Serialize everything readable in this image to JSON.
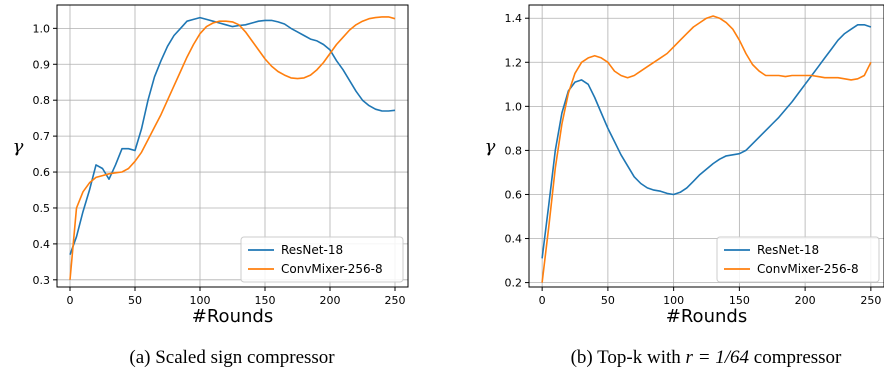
{
  "chart_data": [
    {
      "type": "line",
      "caption": "(a)  Scaled sign compressor",
      "xlabel": "#Rounds",
      "ylabel": "γ",
      "xlim": [
        -10,
        260
      ],
      "ylim": [
        0.28,
        1.065
      ],
      "xticks": [
        0,
        50,
        100,
        150,
        200,
        250
      ],
      "yticks": [
        0.3,
        0.4,
        0.5,
        0.6,
        0.7,
        0.8,
        0.9,
        1.0
      ],
      "ytick_labels": [
        "0.3",
        "0.4",
        "0.5",
        "0.6",
        "0.7",
        "0.8",
        "0.9",
        "1.0"
      ],
      "grid": true,
      "legend_position": "bottom-right",
      "series": [
        {
          "name": "ResNet-18",
          "color": "#1f77b4",
          "x": [
            0,
            5,
            10,
            15,
            20,
            25,
            30,
            35,
            40,
            45,
            50,
            55,
            60,
            65,
            70,
            75,
            80,
            85,
            90,
            95,
            100,
            105,
            110,
            115,
            120,
            125,
            130,
            135,
            140,
            145,
            150,
            155,
            160,
            165,
            170,
            175,
            180,
            185,
            190,
            195,
            200,
            205,
            210,
            215,
            220,
            225,
            230,
            235,
            240,
            245,
            250
          ],
          "y": [
            0.37,
            0.42,
            0.49,
            0.55,
            0.62,
            0.61,
            0.58,
            0.62,
            0.665,
            0.665,
            0.66,
            0.72,
            0.8,
            0.865,
            0.91,
            0.95,
            0.98,
            1.0,
            1.02,
            1.025,
            1.03,
            1.025,
            1.02,
            1.015,
            1.01,
            1.005,
            1.008,
            1.01,
            1.015,
            1.02,
            1.022,
            1.022,
            1.018,
            1.012,
            1.0,
            0.99,
            0.98,
            0.97,
            0.965,
            0.955,
            0.94,
            0.91,
            0.885,
            0.855,
            0.825,
            0.8,
            0.785,
            0.775,
            0.77,
            0.77,
            0.772
          ]
        },
        {
          "name": "ConvMixer-256-8",
          "color": "#ff7f0e",
          "x": [
            0,
            5,
            10,
            15,
            20,
            25,
            30,
            35,
            40,
            45,
            50,
            55,
            60,
            65,
            70,
            75,
            80,
            85,
            90,
            95,
            100,
            105,
            110,
            115,
            120,
            125,
            130,
            135,
            140,
            145,
            150,
            155,
            160,
            165,
            170,
            175,
            180,
            185,
            190,
            195,
            200,
            205,
            210,
            215,
            220,
            225,
            230,
            235,
            240,
            245,
            250
          ],
          "y": [
            0.3,
            0.5,
            0.545,
            0.57,
            0.585,
            0.59,
            0.595,
            0.598,
            0.6,
            0.61,
            0.63,
            0.655,
            0.69,
            0.725,
            0.76,
            0.8,
            0.84,
            0.88,
            0.92,
            0.955,
            0.985,
            1.005,
            1.015,
            1.02,
            1.02,
            1.018,
            1.01,
            0.99,
            0.965,
            0.94,
            0.915,
            0.895,
            0.88,
            0.87,
            0.862,
            0.86,
            0.862,
            0.87,
            0.885,
            0.905,
            0.93,
            0.955,
            0.975,
            0.995,
            1.01,
            1.02,
            1.027,
            1.03,
            1.032,
            1.032,
            1.027
          ]
        }
      ]
    },
    {
      "type": "line",
      "caption_prefix": "(b)  Top-k with",
      "caption_math": "r = 1/64",
      "caption_suffix": "compressor",
      "xlabel": "#Rounds",
      "ylabel": "γ",
      "xlim": [
        -10,
        260
      ],
      "ylim": [
        0.18,
        1.46
      ],
      "xticks": [
        0,
        50,
        100,
        150,
        200,
        250
      ],
      "yticks": [
        0.2,
        0.4,
        0.6,
        0.8,
        1.0,
        1.2,
        1.4
      ],
      "ytick_labels": [
        "0.2",
        "0.4",
        "0.6",
        "0.8",
        "1.0",
        "1.2",
        "1.4"
      ],
      "grid": true,
      "legend_position": "bottom-right",
      "series": [
        {
          "name": "ResNet-18",
          "color": "#1f77b4",
          "x": [
            0,
            5,
            10,
            15,
            20,
            25,
            30,
            35,
            40,
            45,
            50,
            55,
            60,
            65,
            70,
            75,
            80,
            85,
            90,
            95,
            100,
            105,
            110,
            115,
            120,
            125,
            130,
            135,
            140,
            145,
            150,
            155,
            160,
            165,
            170,
            175,
            180,
            185,
            190,
            195,
            200,
            205,
            210,
            215,
            220,
            225,
            230,
            235,
            240,
            245,
            250
          ],
          "y": [
            0.31,
            0.55,
            0.8,
            0.97,
            1.07,
            1.11,
            1.12,
            1.1,
            1.04,
            0.97,
            0.9,
            0.84,
            0.78,
            0.73,
            0.68,
            0.65,
            0.63,
            0.62,
            0.615,
            0.605,
            0.6,
            0.61,
            0.63,
            0.66,
            0.69,
            0.715,
            0.74,
            0.76,
            0.775,
            0.78,
            0.785,
            0.8,
            0.83,
            0.86,
            0.89,
            0.92,
            0.95,
            0.985,
            1.02,
            1.06,
            1.1,
            1.14,
            1.18,
            1.22,
            1.26,
            1.3,
            1.33,
            1.35,
            1.37,
            1.37,
            1.36
          ]
        },
        {
          "name": "ConvMixer-256-8",
          "color": "#ff7f0e",
          "x": [
            0,
            5,
            10,
            15,
            20,
            25,
            30,
            35,
            40,
            45,
            50,
            55,
            60,
            65,
            70,
            75,
            80,
            85,
            90,
            95,
            100,
            105,
            110,
            115,
            120,
            125,
            130,
            135,
            140,
            145,
            150,
            155,
            160,
            165,
            170,
            175,
            180,
            185,
            190,
            195,
            200,
            205,
            210,
            215,
            220,
            225,
            230,
            235,
            240,
            245,
            250
          ],
          "y": [
            0.2,
            0.45,
            0.72,
            0.92,
            1.06,
            1.15,
            1.2,
            1.22,
            1.23,
            1.22,
            1.2,
            1.16,
            1.14,
            1.13,
            1.14,
            1.16,
            1.18,
            1.2,
            1.22,
            1.24,
            1.27,
            1.3,
            1.33,
            1.36,
            1.38,
            1.4,
            1.41,
            1.4,
            1.38,
            1.35,
            1.3,
            1.24,
            1.19,
            1.16,
            1.14,
            1.14,
            1.14,
            1.135,
            1.14,
            1.14,
            1.14,
            1.14,
            1.135,
            1.13,
            1.13,
            1.13,
            1.125,
            1.12,
            1.125,
            1.14,
            1.2
          ]
        }
      ]
    }
  ]
}
